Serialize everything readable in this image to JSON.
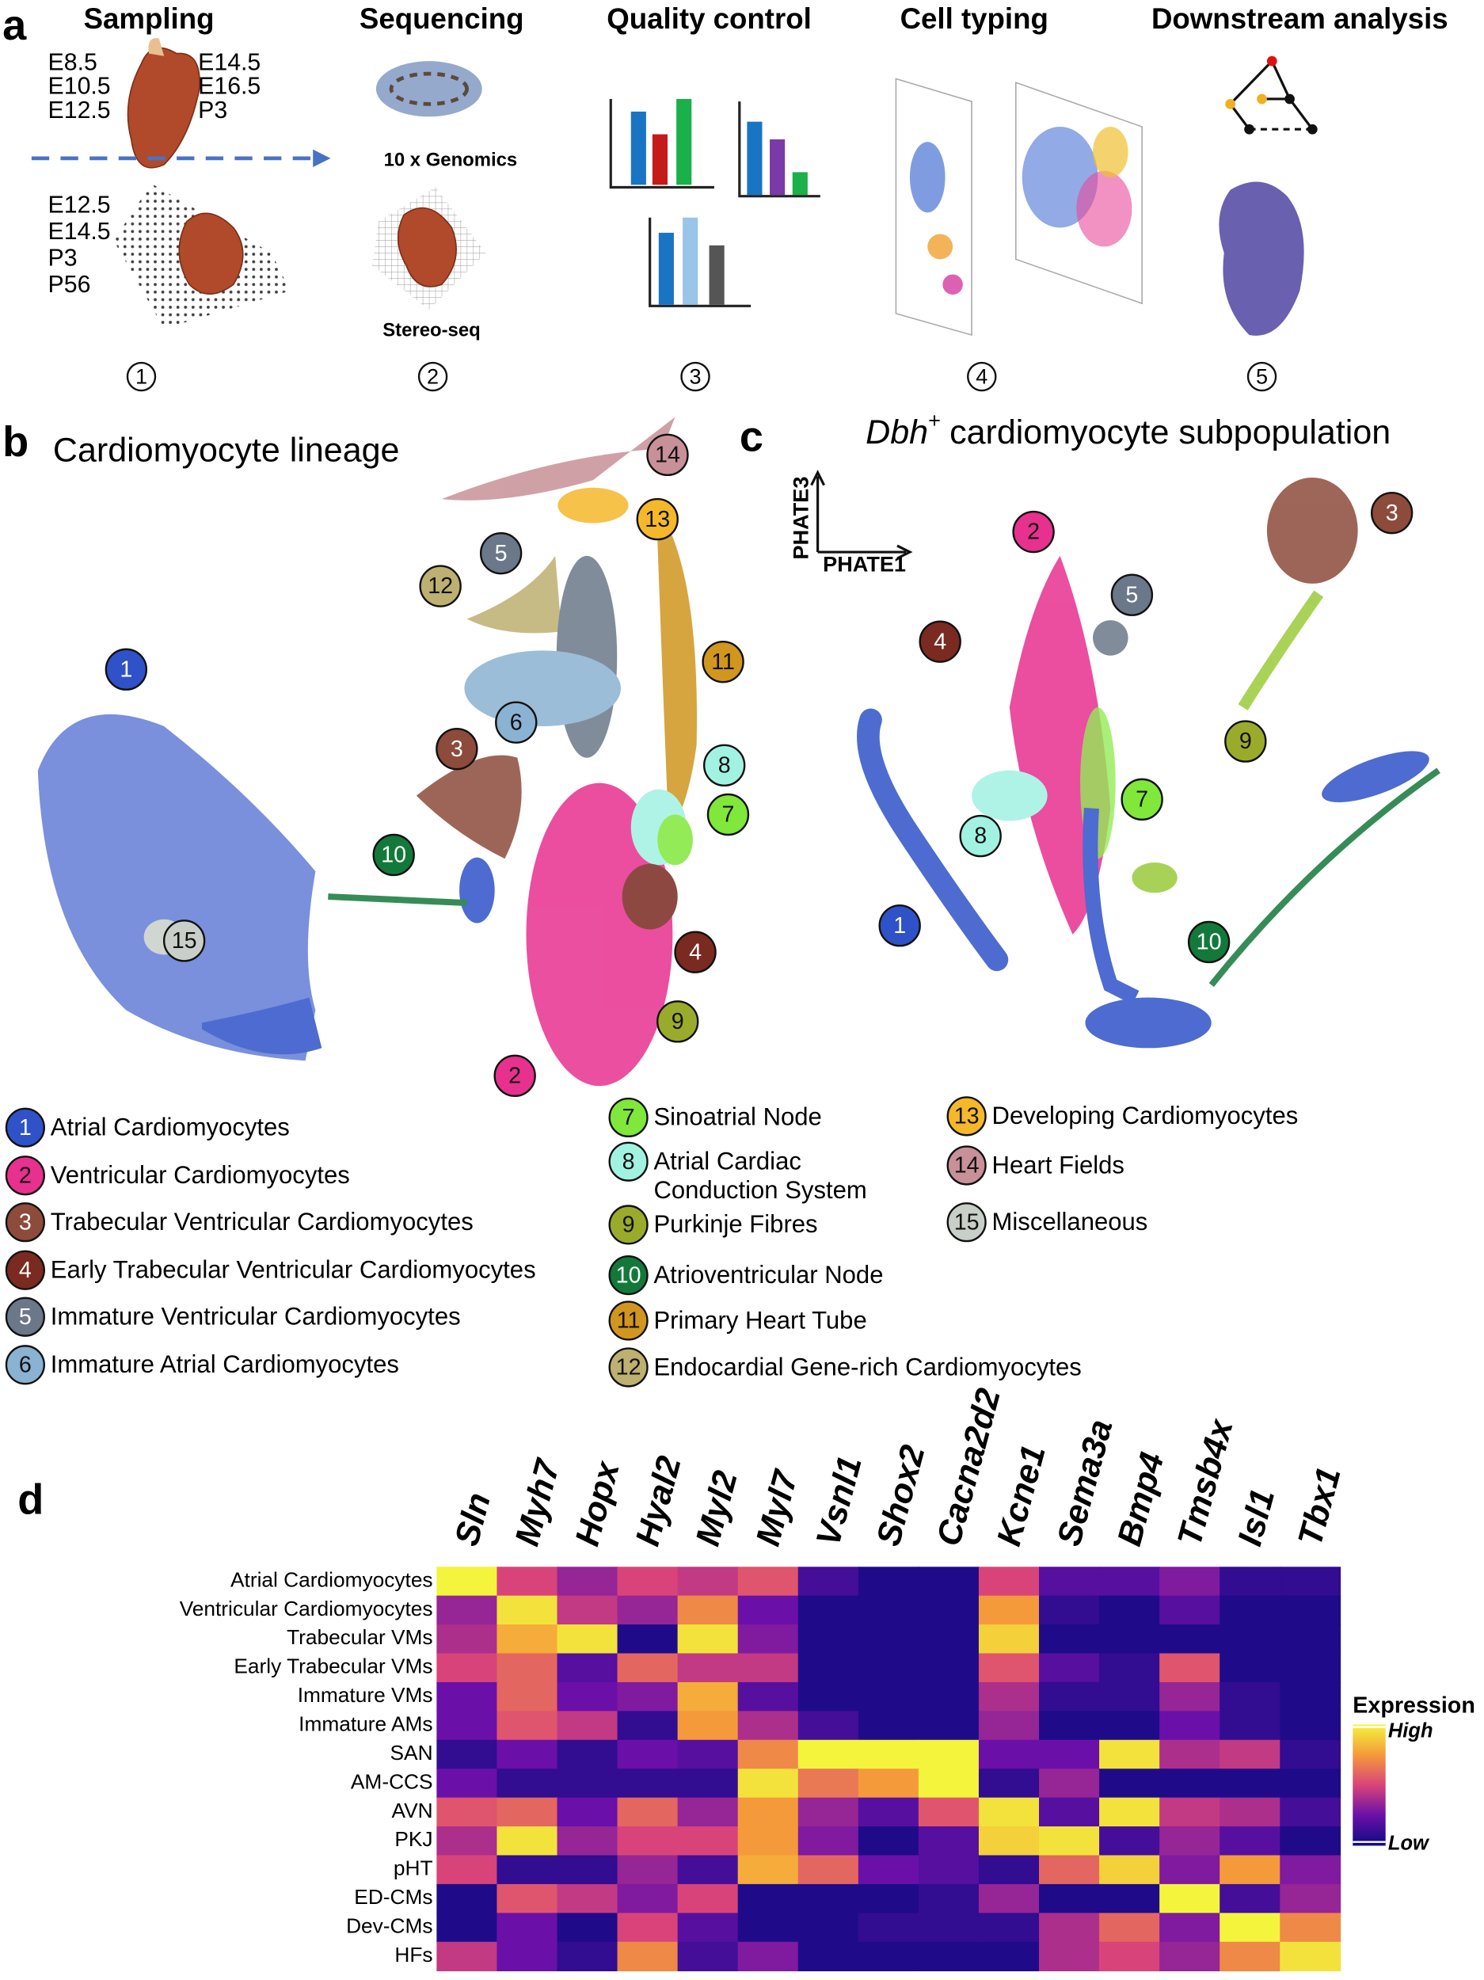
{
  "panel_labels": [
    "a",
    "b",
    "c",
    "d"
  ],
  "panel_a": {
    "steps_titles": [
      "Sampling",
      "Sequencing",
      "Quality control",
      "Cell typing",
      "Downstream analysis"
    ],
    "times_left": [
      "E8.5",
      "E10.5",
      "E12.5"
    ],
    "times_right": [
      "E14.5",
      "E16.5",
      "P3"
    ],
    "times_bottom": [
      "E12.5",
      "E14.5",
      "P3",
      "P56"
    ],
    "platform_top": "10 x Genomics",
    "platform_bottom": "Stereo-seq",
    "steps": [
      "1",
      "2",
      "3",
      "4",
      "5"
    ]
  },
  "panel_b": {
    "title": "Cardiomyocyte lineage",
    "clusters": [
      {
        "number": "1",
        "name_lines": [
          "Atrial Cardiomyocytes"
        ],
        "color": "#2f52c8"
      },
      {
        "number": "2",
        "name_lines": [
          "Ventricular Cardiomyocytes"
        ],
        "color": "#e8308e"
      },
      {
        "number": "3",
        "name_lines": [
          "Trabecular Ventricular Cardiomyocytes"
        ],
        "color": "#8c4b3b"
      },
      {
        "number": "4",
        "name_lines": [
          "Early Trabecular Ventricular Cardiomyocytes"
        ],
        "color": "#7a2a20"
      },
      {
        "number": "5",
        "name_lines": [
          "Immature Ventricular Cardiomyocytes"
        ],
        "color": "#6b7889"
      },
      {
        "number": "6",
        "name_lines": [
          "Immature Atrial Cardiomyocytes"
        ],
        "color": "#8ab2d2"
      },
      {
        "number": "7",
        "name_lines": [
          "Sinoatrial Node"
        ],
        "color": "#7fe83a"
      },
      {
        "number": "8",
        "name_lines": [
          "Atrial Cardiac",
          "Conduction System"
        ],
        "color": "#a2f2e2"
      },
      {
        "number": "9",
        "name_lines": [
          "Purkinje Fibres"
        ],
        "color": "#9aab2c"
      },
      {
        "number": "10",
        "name_lines": [
          "Atrioventricular Node"
        ],
        "color": "#13793a"
      },
      {
        "number": "11",
        "name_lines": [
          "Primary Heart Tube"
        ],
        "color": "#d0961e"
      },
      {
        "number": "12",
        "name_lines": [
          "Endocardial Gene-rich Cardiomyocytes"
        ],
        "color": "#bdb070"
      },
      {
        "number": "13",
        "name_lines": [
          "Developing Cardiomyocytes"
        ],
        "color": "#f5b82a"
      },
      {
        "number": "14",
        "name_lines": [
          "Heart Fields"
        ],
        "color": "#c89098"
      },
      {
        "number": "15",
        "name_lines": [
          "Miscellaneous"
        ],
        "color": "#c8cfc8"
      }
    ]
  },
  "panel_c": {
    "title_gene": "Dbh",
    "title_sup": "+",
    "title_rest": "cardiomyocyte subpopulation",
    "y_axis": "PHATE3",
    "x_axis": "PHATE1",
    "badges": [
      "1",
      "2",
      "3",
      "4",
      "5",
      "7",
      "8",
      "9",
      "10"
    ]
  },
  "chart_data": {
    "type": "heatmap",
    "x": [
      "Sln",
      "Myh7",
      "Hopx",
      "Hyal2",
      "Myl2",
      "Myl7",
      "Vsnl1",
      "Shox2",
      "Cacna2d2",
      "Kcne1",
      "Sema3a",
      "Bmp4",
      "Tmsb4x",
      "Isl1",
      "Tbx1"
    ],
    "y": [
      "Atrial Cardiomyocytes",
      "Ventricular Cardiomyocytes",
      "Trabecular VMs",
      "Early Trabecular VMs",
      "Immature VMs",
      "Immature AMs",
      "SAN",
      "AM-CCS",
      "AVN",
      "PKJ",
      "pHT",
      "ED-CMs",
      "Dev-CMs",
      "HFs"
    ],
    "values": [
      [
        1.0,
        0.5,
        0.35,
        0.5,
        0.45,
        0.55,
        0.15,
        0.05,
        0.05,
        0.5,
        0.2,
        0.2,
        0.3,
        0.1,
        0.1
      ],
      [
        0.35,
        0.95,
        0.45,
        0.35,
        0.7,
        0.25,
        0.05,
        0.05,
        0.05,
        0.75,
        0.1,
        0.05,
        0.2,
        0.05,
        0.05
      ],
      [
        0.4,
        0.8,
        0.95,
        0.05,
        0.95,
        0.3,
        0.05,
        0.05,
        0.05,
        0.9,
        0.05,
        0.05,
        0.05,
        0.05,
        0.05
      ],
      [
        0.5,
        0.6,
        0.2,
        0.6,
        0.45,
        0.45,
        0.05,
        0.05,
        0.05,
        0.55,
        0.2,
        0.1,
        0.55,
        0.05,
        0.05
      ],
      [
        0.25,
        0.6,
        0.25,
        0.3,
        0.8,
        0.2,
        0.05,
        0.05,
        0.05,
        0.4,
        0.1,
        0.1,
        0.35,
        0.1,
        0.05
      ],
      [
        0.25,
        0.55,
        0.45,
        0.1,
        0.75,
        0.4,
        0.15,
        0.05,
        0.05,
        0.35,
        0.05,
        0.05,
        0.25,
        0.1,
        0.05
      ],
      [
        0.1,
        0.25,
        0.1,
        0.25,
        0.2,
        0.7,
        1.0,
        1.0,
        1.0,
        0.25,
        0.25,
        0.95,
        0.4,
        0.45,
        0.1
      ],
      [
        0.25,
        0.1,
        0.1,
        0.1,
        0.1,
        0.95,
        0.65,
        0.75,
        1.0,
        0.1,
        0.35,
        0.05,
        0.05,
        0.05,
        0.05
      ],
      [
        0.55,
        0.6,
        0.25,
        0.6,
        0.35,
        0.75,
        0.35,
        0.2,
        0.55,
        0.95,
        0.2,
        0.95,
        0.45,
        0.4,
        0.15
      ],
      [
        0.4,
        0.95,
        0.35,
        0.5,
        0.5,
        0.75,
        0.3,
        0.05,
        0.2,
        0.9,
        0.95,
        0.15,
        0.35,
        0.2,
        0.05
      ],
      [
        0.5,
        0.1,
        0.1,
        0.35,
        0.15,
        0.8,
        0.6,
        0.25,
        0.2,
        0.1,
        0.6,
        0.9,
        0.3,
        0.75,
        0.3
      ],
      [
        0.05,
        0.55,
        0.45,
        0.3,
        0.5,
        0.05,
        0.05,
        0.05,
        0.1,
        0.35,
        0.05,
        0.05,
        1.0,
        0.15,
        0.35
      ],
      [
        0.05,
        0.25,
        0.05,
        0.5,
        0.2,
        0.05,
        0.05,
        0.1,
        0.1,
        0.1,
        0.4,
        0.6,
        0.3,
        1.0,
        0.7
      ],
      [
        0.45,
        0.25,
        0.1,
        0.7,
        0.15,
        0.3,
        0.05,
        0.05,
        0.05,
        0.05,
        0.4,
        0.5,
        0.35,
        0.7,
        0.95
      ]
    ],
    "zlim": [
      0,
      1
    ],
    "colormap": [
      "#0c0a82",
      "#6a10a8",
      "#d8447a",
      "#f59a3a",
      "#f4f43c"
    ],
    "legend_title": "Expression",
    "high_label": "High",
    "low_label": "Low"
  }
}
